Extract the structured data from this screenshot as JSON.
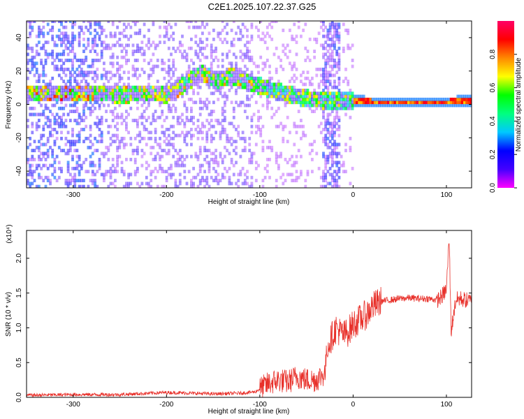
{
  "figure_title": "C2E1.2025.107.22.37.G25",
  "chart_data": [
    {
      "type": "heatmap",
      "title": "",
      "xlabel": "Height of straight line (km)",
      "ylabel": "Frequency (Hz)",
      "xlim": [
        -350,
        127
      ],
      "ylim": [
        -50,
        50
      ],
      "x_ticks": [
        -300,
        -200,
        -100,
        0,
        100
      ],
      "y_ticks": [
        -40,
        -20,
        0,
        20,
        40
      ],
      "colorbar": {
        "label": "Normalized spectral amplitude",
        "range": [
          0.0,
          1.0
        ],
        "ticks": [
          0.0,
          0.2,
          0.4,
          0.6,
          0.8
        ],
        "colors": [
          "#ff00ff",
          "#4400ff",
          "#0000ff",
          "#00c8ff",
          "#00ff80",
          "#00ff00",
          "#ffff00",
          "#ff8800",
          "#ff0000",
          "#ff0066"
        ]
      },
      "ridge": {
        "x": [
          -275,
          -250,
          -225,
          -200,
          -180,
          -165,
          -150,
          -130,
          -110,
          -90,
          -70,
          -55,
          -40,
          -30,
          -10,
          0,
          10,
          30,
          60,
          90,
          110,
          127
        ],
        "y": [
          6,
          5,
          6,
          5,
          12,
          18,
          14,
          16,
          12,
          8,
          5,
          3,
          2,
          1,
          1,
          1,
          1,
          0.5,
          0.5,
          0.5,
          1,
          1
        ]
      }
    },
    {
      "type": "line",
      "title": "",
      "xlabel": "Height of straight line (km)",
      "ylabel": "SNR (10 * v/v)",
      "y_multiplier": "(x10⁴)",
      "xlim": [
        -350,
        127
      ],
      "ylim": [
        0,
        2.4
      ],
      "x_ticks": [
        -300,
        -200,
        -100,
        0,
        100
      ],
      "y_ticks": [
        "0.0",
        "0.5",
        "1.0",
        "1.5",
        "2.0"
      ],
      "color": "#e8302a",
      "series": [
        {
          "x": [
            -350,
            -300,
            -250,
            -200,
            -150,
            -120,
            -105,
            -100,
            -90,
            -80,
            -70,
            -60,
            -50,
            -40,
            -35,
            -30,
            -28,
            -25,
            -22,
            -20,
            -18,
            -15,
            -10,
            -5,
            0,
            5,
            10,
            15,
            20,
            30,
            40,
            50,
            60,
            70,
            80,
            90,
            95,
            100,
            103,
            105,
            110,
            115,
            120,
            127
          ],
          "y": [
            0.03,
            0.04,
            0.04,
            0.07,
            0.05,
            0.06,
            0.08,
            0.12,
            0.2,
            0.25,
            0.22,
            0.3,
            0.25,
            0.25,
            0.3,
            0.35,
            0.7,
            0.8,
            0.9,
            0.95,
            1.0,
            0.95,
            0.9,
            0.95,
            1.05,
            1.1,
            1.15,
            1.2,
            1.3,
            1.38,
            1.4,
            1.42,
            1.43,
            1.42,
            1.42,
            1.4,
            1.45,
            1.55,
            2.3,
            0.95,
            1.4,
            1.42,
            1.4,
            1.38
          ]
        }
      ]
    }
  ]
}
